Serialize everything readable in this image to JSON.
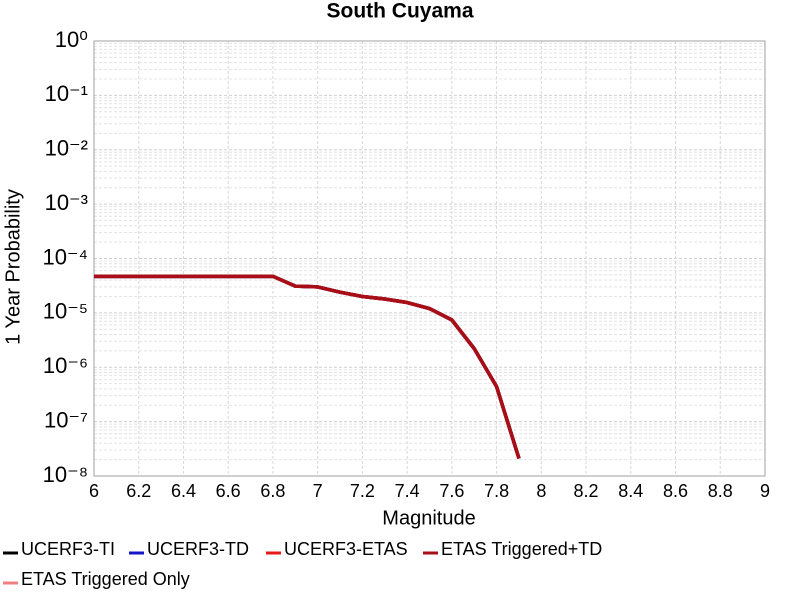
{
  "chart_data": {
    "type": "line",
    "title": "South Cuyama",
    "x_label": "Magnitude",
    "y_label": "1 Year Probability",
    "log_y": true,
    "grid": true,
    "x": [
      6.0,
      6.1,
      6.2,
      6.3,
      6.4,
      6.5,
      6.6,
      6.7,
      6.8,
      6.9,
      7.0,
      7.1,
      7.2,
      7.3,
      7.4,
      7.5,
      7.6,
      7.7,
      7.8,
      7.9
    ],
    "series": [
      {
        "name": "UCERF3-TI",
        "color": "#000000",
        "values": [
          4.7e-05,
          4.7e-05,
          4.7e-05,
          4.7e-05,
          4.7e-05,
          4.7e-05,
          4.7e-05,
          4.7e-05,
          4.7e-05,
          3.1e-05,
          3e-05,
          2.4e-05,
          2e-05,
          1.8e-05,
          1.55e-05,
          1.2e-05,
          7.4e-06,
          2.2e-06,
          4.4e-07,
          2.1e-08
        ]
      },
      {
        "name": "UCERF3-TD",
        "color": "#1515c8",
        "values": [
          4.7e-05,
          4.7e-05,
          4.7e-05,
          4.7e-05,
          4.7e-05,
          4.7e-05,
          4.7e-05,
          4.7e-05,
          4.7e-05,
          3.1e-05,
          3e-05,
          2.4e-05,
          2e-05,
          1.8e-05,
          1.55e-05,
          1.2e-05,
          7.4e-06,
          2.2e-06,
          4.4e-07,
          2.1e-08
        ]
      },
      {
        "name": "UCERF3-ETAS",
        "color": "#e81818",
        "values": [
          4.7e-05,
          4.7e-05,
          4.7e-05,
          4.7e-05,
          4.7e-05,
          4.7e-05,
          4.7e-05,
          4.7e-05,
          4.7e-05,
          3.1e-05,
          3e-05,
          2.4e-05,
          2e-05,
          1.8e-05,
          1.55e-05,
          1.2e-05,
          7.4e-06,
          2.2e-06,
          4.4e-07,
          2.1e-08
        ]
      },
      {
        "name": "ETAS Triggered+TD",
        "color": "#a80e16",
        "values": [
          4.7e-05,
          4.7e-05,
          4.7e-05,
          4.7e-05,
          4.7e-05,
          4.7e-05,
          4.7e-05,
          4.7e-05,
          4.7e-05,
          3.1e-05,
          3e-05,
          2.4e-05,
          2e-05,
          1.8e-05,
          1.55e-05,
          1.2e-05,
          7.4e-06,
          2.2e-06,
          4.4e-07,
          2.1e-08
        ]
      },
      {
        "name": "ETAS Triggered Only",
        "color": "#f08080",
        "values": [
          null,
          null,
          null,
          null,
          null,
          null,
          null,
          null,
          null,
          null,
          null,
          null,
          null,
          null,
          null,
          null,
          null,
          null,
          null,
          null
        ]
      }
    ],
    "xlim": [
      6,
      9
    ],
    "xticks": [
      6,
      6.2,
      6.4,
      6.6,
      6.8,
      7,
      7.2,
      7.4,
      7.6,
      7.8,
      8,
      8.2,
      8.4,
      8.6,
      8.8,
      9
    ],
    "ylim": [
      1e-08,
      1
    ],
    "yticks": [
      {
        "value": 1e-08,
        "label": "10⁻⁸"
      },
      {
        "value": 1e-07,
        "label": "10⁻⁷"
      },
      {
        "value": 1e-06,
        "label": "10⁻⁶"
      },
      {
        "value": 1e-05,
        "label": "10⁻⁵"
      },
      {
        "value": 0.0001,
        "label": "10⁻⁴"
      },
      {
        "value": 0.001,
        "label": "10⁻³"
      },
      {
        "value": 0.01,
        "label": "10⁻²"
      },
      {
        "value": 0.1,
        "label": "10⁻¹"
      },
      {
        "value": 1,
        "label": "10⁰"
      }
    ]
  }
}
